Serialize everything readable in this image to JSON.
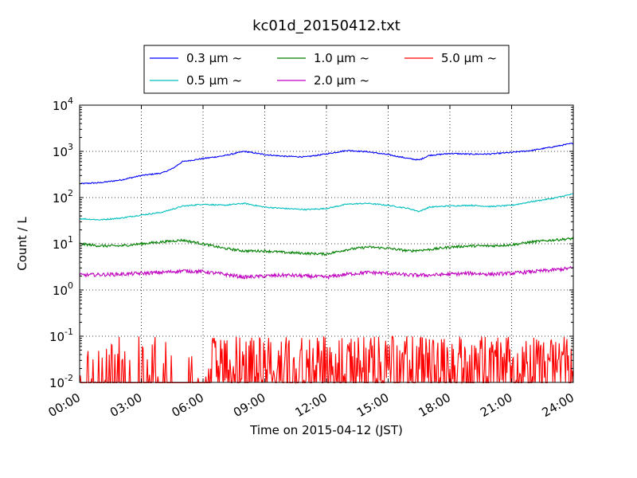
{
  "chart_data": {
    "type": "line",
    "title": "kc01d_20150412.txt",
    "xlabel": "Time on 2015-04-12 (JST)",
    "ylabel": "Count / L",
    "y_scale": "log",
    "ylim": [
      0.01,
      10000
    ],
    "xlim": [
      "00:00",
      "24:00"
    ],
    "x_ticks": [
      "00:00",
      "03:00",
      "06:00",
      "09:00",
      "12:00",
      "15:00",
      "18:00",
      "21:00",
      "24:00"
    ],
    "y_ticks": [
      {
        "value": 0.01,
        "base": "10",
        "exp": "-2"
      },
      {
        "value": 0.1,
        "base": "10",
        "exp": "-1"
      },
      {
        "value": 1,
        "base": "10",
        "exp": "0"
      },
      {
        "value": 10,
        "base": "10",
        "exp": "1"
      },
      {
        "value": 100,
        "base": "10",
        "exp": "2"
      },
      {
        "value": 1000,
        "base": "10",
        "exp": "3"
      },
      {
        "value": 10000,
        "base": "10",
        "exp": "4"
      }
    ],
    "grid": true,
    "legend_position": "top-center",
    "series": [
      {
        "name": "0.3 μm ~",
        "color": "#0000ff",
        "hours": [
          0,
          1,
          2,
          3,
          4,
          4.5,
          5,
          6,
          7,
          8,
          9,
          10,
          11,
          12,
          13,
          14,
          15,
          16,
          16.5,
          17,
          18,
          19,
          20,
          21,
          22,
          23,
          24
        ],
        "values": [
          200,
          210,
          240,
          300,
          340,
          420,
          600,
          700,
          800,
          1000,
          850,
          780,
          760,
          880,
          1050,
          980,
          850,
          700,
          650,
          820,
          900,
          870,
          880,
          950,
          1050,
          1250,
          1500
        ]
      },
      {
        "name": "0.5 μm ~",
        "color": "#00bfbf",
        "hours": [
          0,
          1,
          2,
          3,
          4,
          5,
          6,
          7,
          8,
          9,
          10,
          11,
          12,
          13,
          14,
          15,
          16,
          16.5,
          17,
          18,
          19,
          20,
          21,
          22,
          23,
          24
        ],
        "values": [
          35,
          33,
          36,
          42,
          48,
          65,
          72,
          68,
          75,
          62,
          58,
          55,
          58,
          72,
          75,
          68,
          58,
          50,
          62,
          66,
          68,
          64,
          68,
          82,
          96,
          120
        ]
      },
      {
        "name": "1.0 μm ~",
        "color": "#008000",
        "hours": [
          0,
          1,
          2,
          3,
          4,
          5,
          6,
          7,
          8,
          9,
          10,
          11,
          12,
          13,
          14,
          15,
          16,
          17,
          18,
          19,
          20,
          21,
          22,
          23,
          24
        ],
        "values": [
          10,
          9,
          9,
          10,
          11,
          12,
          10,
          8,
          7,
          7,
          6.5,
          6.2,
          6,
          7.5,
          8.5,
          8,
          7,
          7.5,
          8.5,
          9,
          9,
          9.5,
          11,
          12,
          13
        ]
      },
      {
        "name": "2.0 μm ~",
        "color": "#bf00bf",
        "hours": [
          0,
          2,
          4,
          5,
          6,
          7,
          8,
          9,
          10,
          11,
          12,
          13,
          14,
          15,
          16,
          17,
          18,
          19,
          20,
          21,
          22,
          23,
          24
        ],
        "values": [
          2.1,
          2.2,
          2.4,
          2.6,
          2.5,
          2.2,
          1.9,
          2.0,
          2.1,
          2.0,
          1.9,
          2.2,
          2.4,
          2.3,
          2.1,
          2.1,
          2.2,
          2.3,
          2.2,
          2.3,
          2.5,
          2.7,
          3.0
        ]
      },
      {
        "name": "5.0 μm ~",
        "color": "#ff0000",
        "hours": [
          0,
          24
        ],
        "values": [
          0.01,
          0.1
        ],
        "note": "noisy"
      }
    ]
  }
}
